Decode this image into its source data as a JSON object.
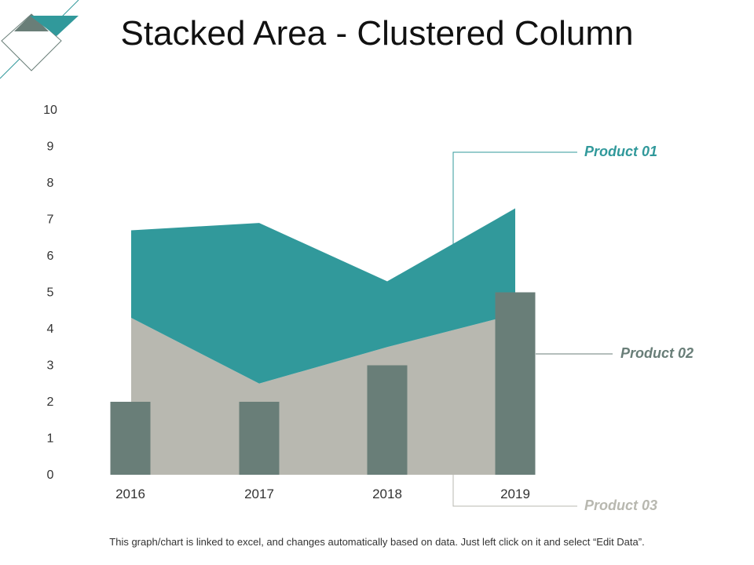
{
  "slide": {
    "title": "Stacked Area - Clustered Column",
    "footnote": "This graph/chart is linked to excel, and changes automatically based on data.  Just left click on it and select “Edit Data”."
  },
  "colors": {
    "product01": "#31999b",
    "product02": "#697e78",
    "product03": "#b8b8b0",
    "label01": "#31999b",
    "label02": "#697e78",
    "label03": "#b8b8b0",
    "axis_text": "#333333",
    "deco_teal": "#31999b",
    "deco_gray": "#697e78"
  },
  "chart_data": {
    "type": "area+bar",
    "title": "Stacked Area - Clustered Column",
    "categories": [
      "2016",
      "2017",
      "2018",
      "2019"
    ],
    "ylim": [
      0,
      10
    ],
    "yticks": [
      0,
      1,
      2,
      3,
      4,
      5,
      6,
      7,
      8,
      9,
      10
    ],
    "grid": false,
    "series": [
      {
        "name": "Product 01",
        "kind": "stacked-area",
        "values": [
          2.4,
          4.4,
          1.8,
          2.9
        ]
      },
      {
        "name": "Product 02",
        "kind": "clustered-column",
        "values": [
          2,
          2,
          3,
          5
        ]
      },
      {
        "name": "Product 03",
        "kind": "stacked-area",
        "values": [
          4.3,
          2.5,
          3.5,
          4.4
        ]
      }
    ]
  }
}
